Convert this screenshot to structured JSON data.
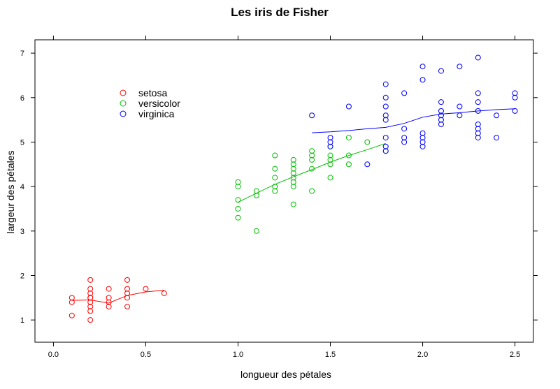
{
  "chart_data": {
    "type": "scatter",
    "title": "Les iris de Fisher",
    "xlabel": "longueur des pétales",
    "ylabel": "largeur des pétales",
    "xlim": [
      -0.1,
      2.6
    ],
    "ylim": [
      0.5,
      7.3
    ],
    "x_ticks": [
      "0.0",
      "0.5",
      "1.0",
      "1.5",
      "2.0",
      "2.5"
    ],
    "y_ticks": [
      "1",
      "2",
      "3",
      "4",
      "5",
      "6",
      "7"
    ],
    "legend_position": "top-left",
    "series": [
      {
        "name": "setosa",
        "color": "#ff0000",
        "points": [
          [
            0.1,
            1.5
          ],
          [
            0.1,
            1.4
          ],
          [
            0.1,
            1.1
          ],
          [
            0.2,
            1.0
          ],
          [
            0.2,
            1.2
          ],
          [
            0.2,
            1.3
          ],
          [
            0.2,
            1.4
          ],
          [
            0.2,
            1.5
          ],
          [
            0.2,
            1.5
          ],
          [
            0.2,
            1.6
          ],
          [
            0.2,
            1.7
          ],
          [
            0.2,
            1.9
          ],
          [
            0.3,
            1.3
          ],
          [
            0.3,
            1.4
          ],
          [
            0.3,
            1.5
          ],
          [
            0.3,
            1.7
          ],
          [
            0.4,
            1.3
          ],
          [
            0.4,
            1.5
          ],
          [
            0.4,
            1.6
          ],
          [
            0.4,
            1.7
          ],
          [
            0.4,
            1.9
          ],
          [
            0.5,
            1.7
          ],
          [
            0.6,
            1.6
          ]
        ],
        "smooth": [
          [
            0.1,
            1.44
          ],
          [
            0.2,
            1.45
          ],
          [
            0.3,
            1.38
          ],
          [
            0.4,
            1.55
          ],
          [
            0.5,
            1.63
          ],
          [
            0.6,
            1.67
          ]
        ]
      },
      {
        "name": "versicolor",
        "color": "#00c000",
        "points": [
          [
            1.0,
            3.3
          ],
          [
            1.0,
            3.5
          ],
          [
            1.0,
            3.7
          ],
          [
            1.0,
            4.0
          ],
          [
            1.0,
            4.1
          ],
          [
            1.1,
            3.0
          ],
          [
            1.1,
            3.8
          ],
          [
            1.1,
            3.9
          ],
          [
            1.2,
            3.9
          ],
          [
            1.2,
            4.0
          ],
          [
            1.2,
            4.2
          ],
          [
            1.2,
            4.4
          ],
          [
            1.2,
            4.7
          ],
          [
            1.3,
            3.6
          ],
          [
            1.3,
            4.0
          ],
          [
            1.3,
            4.1
          ],
          [
            1.3,
            4.2
          ],
          [
            1.3,
            4.3
          ],
          [
            1.3,
            4.4
          ],
          [
            1.3,
            4.5
          ],
          [
            1.3,
            4.6
          ],
          [
            1.4,
            3.9
          ],
          [
            1.4,
            4.4
          ],
          [
            1.4,
            4.6
          ],
          [
            1.4,
            4.7
          ],
          [
            1.4,
            4.8
          ],
          [
            1.5,
            4.2
          ],
          [
            1.5,
            4.5
          ],
          [
            1.5,
            4.6
          ],
          [
            1.5,
            4.7
          ],
          [
            1.5,
            4.9
          ],
          [
            1.6,
            4.5
          ],
          [
            1.6,
            4.7
          ],
          [
            1.6,
            5.1
          ],
          [
            1.7,
            5.0
          ],
          [
            1.8,
            4.8
          ]
        ],
        "smooth": [
          [
            1.0,
            3.65
          ],
          [
            1.1,
            3.85
          ],
          [
            1.2,
            4.05
          ],
          [
            1.3,
            4.22
          ],
          [
            1.4,
            4.38
          ],
          [
            1.5,
            4.55
          ],
          [
            1.6,
            4.7
          ],
          [
            1.7,
            4.83
          ],
          [
            1.8,
            4.97
          ]
        ]
      },
      {
        "name": "virginica",
        "color": "#0000ff",
        "points": [
          [
            1.4,
            5.6
          ],
          [
            1.5,
            4.9
          ],
          [
            1.5,
            5.0
          ],
          [
            1.5,
            5.1
          ],
          [
            1.6,
            5.8
          ],
          [
            1.7,
            4.5
          ],
          [
            1.8,
            4.8
          ],
          [
            1.8,
            4.9
          ],
          [
            1.8,
            5.1
          ],
          [
            1.8,
            5.5
          ],
          [
            1.8,
            5.6
          ],
          [
            1.8,
            5.8
          ],
          [
            1.8,
            6.0
          ],
          [
            1.8,
            6.3
          ],
          [
            1.9,
            5.0
          ],
          [
            1.9,
            5.1
          ],
          [
            1.9,
            5.3
          ],
          [
            1.9,
            6.1
          ],
          [
            2.0,
            4.9
          ],
          [
            2.0,
            5.0
          ],
          [
            2.0,
            5.1
          ],
          [
            2.0,
            5.2
          ],
          [
            2.0,
            6.4
          ],
          [
            2.0,
            6.7
          ],
          [
            2.1,
            5.4
          ],
          [
            2.1,
            5.5
          ],
          [
            2.1,
            5.6
          ],
          [
            2.1,
            5.7
          ],
          [
            2.1,
            5.9
          ],
          [
            2.1,
            6.6
          ],
          [
            2.2,
            5.6
          ],
          [
            2.2,
            5.8
          ],
          [
            2.2,
            6.7
          ],
          [
            2.3,
            5.1
          ],
          [
            2.3,
            5.2
          ],
          [
            2.3,
            5.3
          ],
          [
            2.3,
            5.4
          ],
          [
            2.3,
            5.7
          ],
          [
            2.3,
            5.9
          ],
          [
            2.3,
            6.1
          ],
          [
            2.3,
            6.9
          ],
          [
            2.4,
            5.1
          ],
          [
            2.4,
            5.6
          ],
          [
            2.5,
            5.7
          ],
          [
            2.5,
            6.0
          ],
          [
            2.5,
            6.1
          ]
        ],
        "smooth": [
          [
            1.4,
            5.21
          ],
          [
            1.5,
            5.23
          ],
          [
            1.6,
            5.26
          ],
          [
            1.7,
            5.3
          ],
          [
            1.8,
            5.33
          ],
          [
            1.9,
            5.42
          ],
          [
            2.0,
            5.56
          ],
          [
            2.1,
            5.63
          ],
          [
            2.2,
            5.66
          ],
          [
            2.3,
            5.7
          ],
          [
            2.4,
            5.73
          ],
          [
            2.5,
            5.75
          ]
        ]
      }
    ]
  }
}
